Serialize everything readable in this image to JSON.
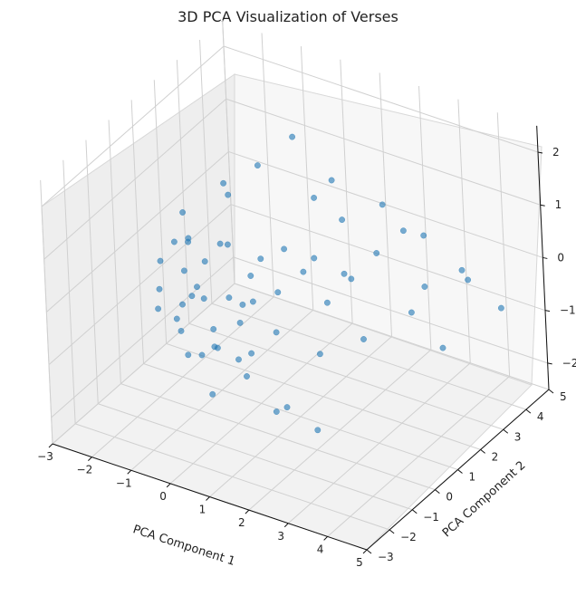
{
  "chart_data": {
    "type": "scatter",
    "title": "3D PCA Visualization of Verses",
    "xlabel": "PCA Component 1",
    "ylabel": "PCA Component 2",
    "zlabel": "",
    "xlim": [
      -3,
      5
    ],
    "ylim": [
      -3,
      5
    ],
    "zlim": [
      -2,
      2
    ],
    "xticks": [
      -3,
      -2,
      -1,
      0,
      1,
      2,
      3,
      4,
      5
    ],
    "yticks": [
      -3,
      -2,
      -1,
      0,
      1,
      2,
      3,
      4,
      5
    ],
    "zticks": [
      -2,
      -1,
      0,
      1,
      2
    ],
    "xtick_labels": [
      "−3",
      "−2",
      "−1",
      "0",
      "1",
      "2",
      "3",
      "4",
      "5"
    ],
    "ytick_labels": [
      "−3",
      "−2",
      "−1",
      "0",
      "1",
      "2",
      "3",
      "4",
      "5"
    ],
    "ztick_labels": [
      "−2",
      "−1",
      "0",
      "1",
      "2"
    ],
    "grid": true,
    "point_color": "#1f77b4",
    "alpha": 0.6,
    "points": [
      [
        -2.2,
        0.6,
        -0.2
      ],
      [
        -2.0,
        0.9,
        0.1
      ],
      [
        -1.9,
        1.1,
        -0.5
      ],
      [
        -1.8,
        0.8,
        -1.0
      ],
      [
        -1.6,
        1.5,
        -0.4
      ],
      [
        -1.5,
        0.2,
        -1.2
      ],
      [
        -1.4,
        0.5,
        0.4
      ],
      [
        -1.3,
        0.9,
        -0.8
      ],
      [
        -1.2,
        1.8,
        -1.1
      ],
      [
        -1.1,
        0.3,
        -0.3
      ],
      [
        -1.0,
        1.2,
        0.2
      ],
      [
        -0.9,
        0.6,
        -1.5
      ],
      [
        -0.8,
        2.1,
        -0.7
      ],
      [
        -0.7,
        1.4,
        -1.3
      ],
      [
        -0.6,
        0.1,
        -0.9
      ],
      [
        -0.5,
        0.7,
        0.5
      ],
      [
        -0.4,
        1.9,
        -0.2
      ],
      [
        -0.3,
        2.4,
        -1.0
      ],
      [
        -0.2,
        1.0,
        -1.6
      ],
      [
        0.0,
        0.4,
        -0.4
      ],
      [
        0.2,
        2.7,
        -0.6
      ],
      [
        0.4,
        1.6,
        0.3
      ],
      [
        0.6,
        3.0,
        -1.2
      ],
      [
        0.8,
        2.2,
        0.0
      ],
      [
        1.0,
        3.4,
        -0.8
      ],
      [
        1.2,
        2.8,
        0.6
      ],
      [
        1.5,
        3.7,
        -0.3
      ],
      [
        1.8,
        2.5,
        -1.4
      ],
      [
        2.1,
        3.9,
        0.2
      ],
      [
        2.4,
        4.2,
        -0.9
      ],
      [
        2.8,
        3.6,
        0.4
      ],
      [
        3.2,
        4.5,
        -0.5
      ],
      [
        -1.7,
        -0.4,
        -0.6
      ],
      [
        -1.4,
        -0.8,
        0.0
      ],
      [
        -1.1,
        -0.2,
        -1.4
      ],
      [
        -0.8,
        -1.1,
        -0.3
      ],
      [
        -0.5,
        -0.6,
        -1.1
      ],
      [
        -0.2,
        -1.4,
        0.4
      ],
      [
        0.1,
        -0.9,
        -0.7
      ],
      [
        0.4,
        -1.7,
        -1.2
      ],
      [
        0.7,
        -0.3,
        0.1
      ],
      [
        1.0,
        -1.2,
        -0.9
      ],
      [
        1.3,
        -2.0,
        -0.2
      ],
      [
        1.7,
        -0.7,
        -1.5
      ],
      [
        2.0,
        -1.5,
        0.3
      ],
      [
        2.4,
        -2.3,
        -0.8
      ],
      [
        2.8,
        -1.0,
        -0.1
      ],
      [
        3.2,
        -1.9,
        -1.1
      ],
      [
        -1.2,
        0.0,
        1.2
      ],
      [
        -0.6,
        0.8,
        1.6
      ],
      [
        0.0,
        1.3,
        1.9
      ],
      [
        0.5,
        2.0,
        2.3
      ],
      [
        1.1,
        2.6,
        1.4
      ],
      [
        1.6,
        1.0,
        1.8
      ],
      [
        2.2,
        2.9,
        1.1
      ],
      [
        0.3,
        -0.5,
        2.1
      ],
      [
        -0.9,
        -0.3,
        0.9
      ],
      [
        2.6,
        0.5,
        0.8
      ],
      [
        3.5,
        1.8,
        -0.2
      ],
      [
        3.9,
        2.4,
        -1.0
      ],
      [
        4.2,
        3.1,
        0.1
      ],
      [
        4.6,
        3.8,
        -0.6
      ]
    ]
  }
}
